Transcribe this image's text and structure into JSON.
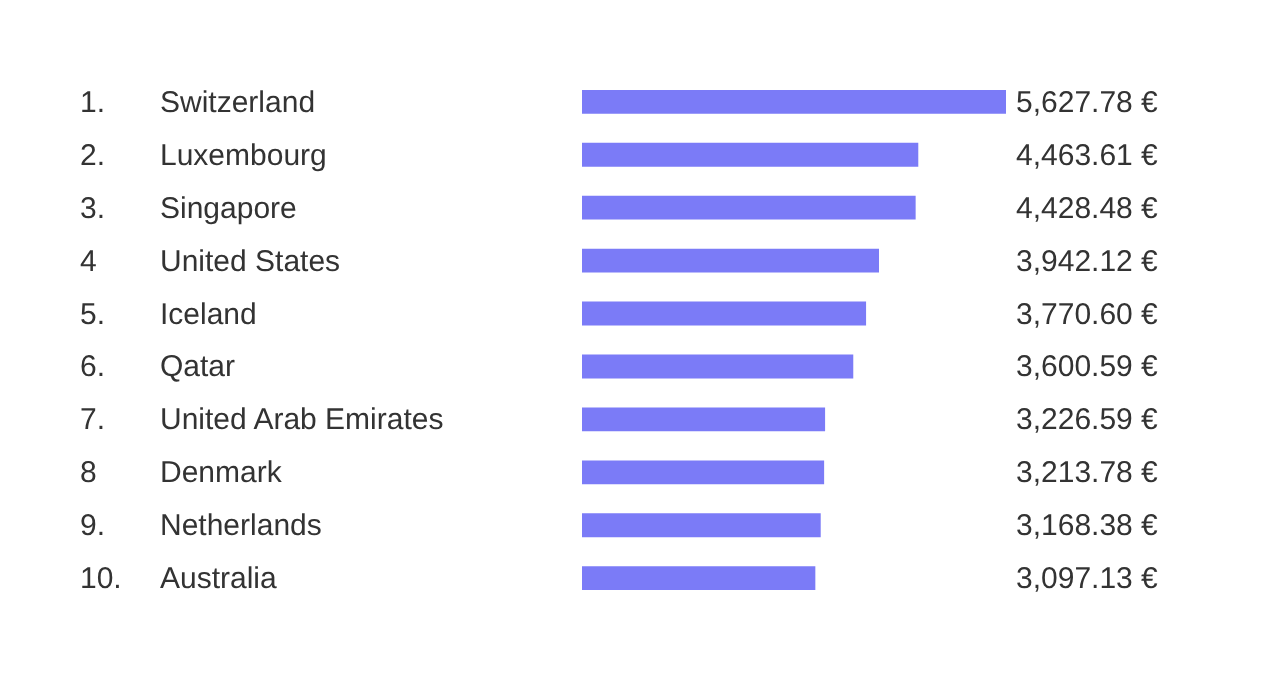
{
  "chart_data": {
    "type": "bar",
    "orientation": "horizontal",
    "categories": [
      "Switzerland",
      "Luxembourg",
      "Singapore",
      "United States",
      "Iceland",
      "Qatar",
      "United Arab Emirates",
      "Denmark",
      "Netherlands",
      "Australia"
    ],
    "values": [
      5627.78,
      4463.61,
      4428.48,
      3942.12,
      3770.6,
      3600.59,
      3226.59,
      3213.78,
      3168.38,
      3097.13
    ],
    "value_labels": [
      "5,627.78 €",
      "4,463.61 €",
      "4,428.48 €",
      "3,942.12 €",
      "3,770.60 €",
      "3,600.59 €",
      "3,226.59 €",
      "3,213.78 €",
      "3,168.38 €",
      "3,097.13 €"
    ],
    "annotations": [
      "1.",
      "2.",
      "3.",
      "4",
      "5.",
      "6.",
      "7.",
      "8",
      "9.",
      "10."
    ],
    "color": "#7b7bf7"
  }
}
